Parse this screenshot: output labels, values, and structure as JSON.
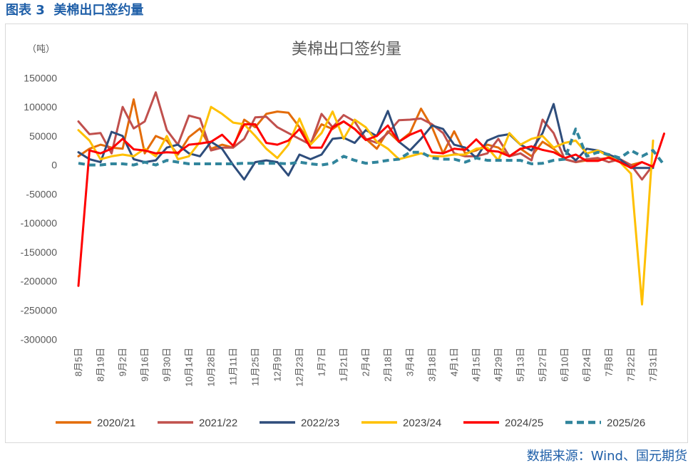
{
  "header": {
    "title": "图表 3  美棉出口签约量"
  },
  "source": "数据来源：Wind、国元期货",
  "chart_data": {
    "type": "line",
    "title": "美棉出口签约量",
    "y_unit": "（吨）",
    "ylim": [
      -300000,
      150000
    ],
    "y_ticks": [
      150000,
      100000,
      50000,
      0,
      -50000,
      -100000,
      -150000,
      -200000,
      -250000,
      -300000
    ],
    "grid": false,
    "legend_position": "bottom",
    "categories": [
      "8月5日",
      "",
      "8月19日",
      "",
      "9月2日",
      "",
      "9月16日",
      "",
      "9月30日",
      "",
      "10月14日",
      "",
      "10月28日",
      "",
      "11月11日",
      "",
      "11月25日",
      "",
      "12月9日",
      "",
      "12月23日",
      "",
      "1月7日",
      "",
      "1月21日",
      "",
      "2月4日",
      "",
      "2月18日",
      "",
      "3月4日",
      "",
      "3月18日",
      "",
      "4月1日",
      "",
      "4月15日",
      "",
      "4月29日",
      "",
      "5月13日",
      "",
      "5月27日",
      "",
      "6月10日",
      "",
      "6月24日",
      "",
      "7月8日",
      "",
      "7月22日",
      "",
      "7月31日",
      ""
    ],
    "series": [
      {
        "name": "2020/21",
        "color": "#E36C09",
        "line_style": "solid",
        "values": [
          15000,
          28000,
          35000,
          30000,
          28000,
          113000,
          20000,
          50000,
          42000,
          18000,
          48000,
          63000,
          28000,
          35000,
          30000,
          78000,
          65000,
          88000,
          92000,
          90000,
          65000,
          38000,
          70000,
          62000,
          75000,
          62000,
          45000,
          28000,
          58000,
          40000,
          55000,
          97000,
          65000,
          20000,
          58000,
          20000,
          25000,
          35000,
          30000,
          15000,
          28000,
          15000,
          40000,
          28000,
          10000,
          5000,
          8000,
          10000,
          12000,
          5000,
          0,
          5000,
          null,
          null
        ]
      },
      {
        "name": "2021/22",
        "color": "#C0504D",
        "line_style": "solid",
        "values": [
          75000,
          53000,
          55000,
          20000,
          100000,
          63000,
          75000,
          125000,
          60000,
          35000,
          85000,
          80000,
          25000,
          30000,
          30000,
          45000,
          82000,
          83000,
          65000,
          55000,
          45000,
          35000,
          88000,
          65000,
          86000,
          75000,
          45000,
          38000,
          55000,
          77000,
          78000,
          80000,
          70000,
          55000,
          20000,
          15000,
          15000,
          20000,
          45000,
          15000,
          20000,
          8000,
          78000,
          55000,
          10000,
          5000,
          10000,
          12000,
          5000,
          10000,
          0,
          -25000,
          0,
          null
        ]
      },
      {
        "name": "2022/23",
        "color": "#2E4D7B",
        "line_style": "solid",
        "values": [
          22000,
          10000,
          5000,
          57000,
          50000,
          10000,
          5000,
          8000,
          30000,
          35000,
          20000,
          15000,
          40000,
          28000,
          0,
          -25000,
          5000,
          8000,
          5000,
          -18000,
          18000,
          10000,
          18000,
          45000,
          47000,
          38000,
          60000,
          50000,
          93000,
          40000,
          25000,
          45000,
          68000,
          62000,
          35000,
          30000,
          12000,
          42000,
          50000,
          53000,
          35000,
          25000,
          55000,
          105000,
          25000,
          8000,
          28000,
          25000,
          18000,
          10000,
          -5000,
          -5000,
          -5000,
          null
        ]
      },
      {
        "name": "2023/24",
        "color": "#FFC000",
        "line_style": "solid",
        "values": [
          60000,
          42000,
          10000,
          15000,
          18000,
          15000,
          28000,
          15000,
          50000,
          10000,
          15000,
          40000,
          100000,
          88000,
          73000,
          70000,
          50000,
          28000,
          12000,
          35000,
          80000,
          35000,
          55000,
          92000,
          45000,
          78000,
          65000,
          40000,
          28000,
          10000,
          15000,
          20000,
          15000,
          15000,
          18000,
          18000,
          28000,
          30000,
          8000,
          55000,
          35000,
          45000,
          50000,
          30000,
          38000,
          42000,
          20000,
          25000,
          15000,
          5000,
          -15000,
          -240000,
          42000,
          null
        ]
      },
      {
        "name": "2024/25",
        "color": "#FF0000",
        "line_style": "solid",
        "values": [
          -208000,
          25000,
          20000,
          28000,
          45000,
          27000,
          25000,
          20000,
          22000,
          21000,
          35000,
          37000,
          40000,
          52000,
          33000,
          70000,
          70000,
          38000,
          35000,
          42000,
          62000,
          30000,
          30000,
          65000,
          75000,
          62000,
          43000,
          50000,
          68000,
          40000,
          52000,
          60000,
          22000,
          20000,
          28000,
          26000,
          44000,
          25000,
          23000,
          15000,
          28000,
          32000,
          26000,
          22000,
          12000,
          18000,
          7000,
          7000,
          13000,
          5000,
          -5000,
          5000,
          -3000,
          54000
        ]
      },
      {
        "name": "2025/26",
        "color": "#31859C",
        "line_style": "dashed",
        "values": [
          3000,
          0,
          0,
          2000,
          2000,
          0,
          5000,
          0,
          8000,
          5000,
          2000,
          2000,
          2000,
          2000,
          2000,
          3000,
          3000,
          3000,
          3000,
          2000,
          5000,
          2000,
          0,
          3000,
          15000,
          8000,
          3000,
          5000,
          8000,
          10000,
          22000,
          22000,
          12000,
          10000,
          10000,
          5000,
          12000,
          8000,
          8000,
          8000,
          8000,
          2000,
          3000,
          8000,
          10000,
          62000,
          15000,
          22000,
          18000,
          12000,
          25000,
          15000,
          25000,
          0
        ]
      }
    ]
  }
}
